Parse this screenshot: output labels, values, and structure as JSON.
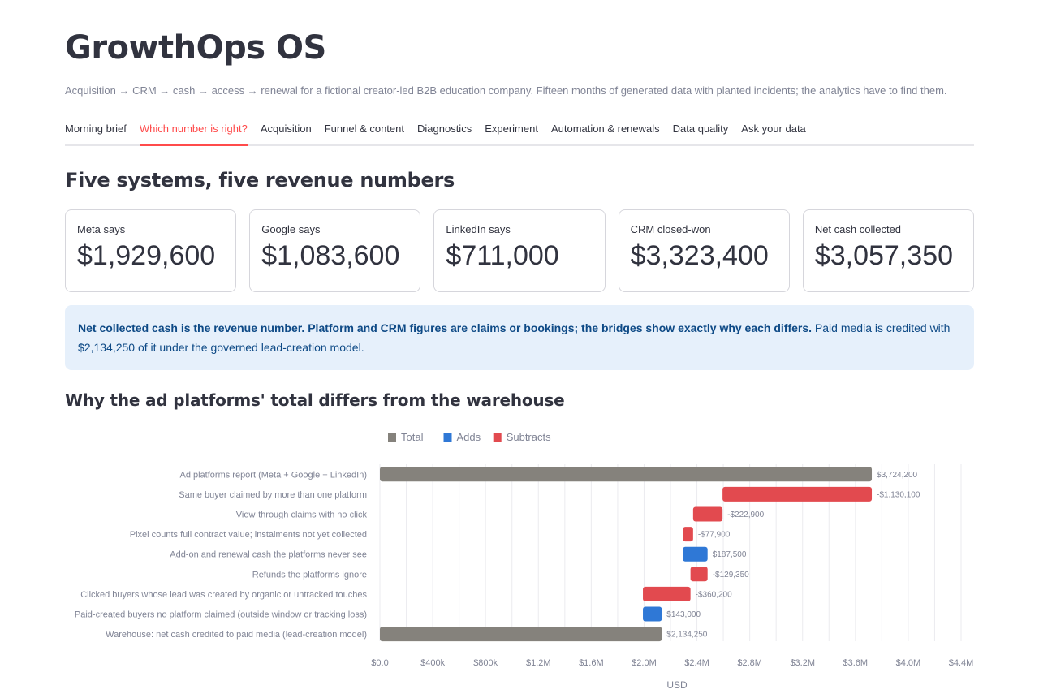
{
  "app": {
    "title": "GrowthOps OS",
    "subtitle": "Acquisition → CRM → cash → access → renewal for a fictional creator-led B2B education company. Fifteen months of generated data with planted incidents; the analytics have to find them."
  },
  "tabs": [
    {
      "label": "Morning brief",
      "active": false
    },
    {
      "label": "Which number is right?",
      "active": true
    },
    {
      "label": "Acquisition",
      "active": false
    },
    {
      "label": "Funnel & content",
      "active": false
    },
    {
      "label": "Diagnostics",
      "active": false
    },
    {
      "label": "Experiment",
      "active": false
    },
    {
      "label": "Automation & renewals",
      "active": false
    },
    {
      "label": "Data quality",
      "active": false
    },
    {
      "label": "Ask your data",
      "active": false
    }
  ],
  "section1": {
    "title": "Five systems, five revenue numbers"
  },
  "metrics": [
    {
      "label": "Meta says",
      "value": "$1,929,600"
    },
    {
      "label": "Google says",
      "value": "$1,083,600"
    },
    {
      "label": "LinkedIn says",
      "value": "$711,000"
    },
    {
      "label": "CRM closed-won",
      "value": "$3,323,400"
    },
    {
      "label": "Net cash collected",
      "value": "$3,057,350"
    }
  ],
  "info": {
    "bold": "Net collected cash is the revenue number. Platform and CRM figures are claims or bookings; the bridges show exactly why each differs.",
    "rest": " Paid media is credited with $2,134,250 of it under the governed lead-creation model."
  },
  "section2": {
    "title": "Why the ad platforms' total differs from the warehouse"
  },
  "colors": {
    "total": "#85827c",
    "adds": "#2f78d6",
    "subtracts": "#e24a4f",
    "accent": "#ff4b4b"
  },
  "chart_data": {
    "type": "bar",
    "orientation": "horizontal-waterfall",
    "legend": [
      {
        "name": "Total",
        "color": "#85827c"
      },
      {
        "name": "Adds",
        "color": "#2f78d6"
      },
      {
        "name": "Subtracts",
        "color": "#e24a4f"
      }
    ],
    "legend_position": "top-center",
    "xlabel": "USD",
    "ylabel": "",
    "xlim": [
      0,
      4400000
    ],
    "x_ticks": [
      {
        "v": 0,
        "label": "$0.0"
      },
      {
        "v": 400000,
        "label": "$400k"
      },
      {
        "v": 800000,
        "label": "$800k"
      },
      {
        "v": 1200000,
        "label": "$1.2M"
      },
      {
        "v": 1600000,
        "label": "$1.6M"
      },
      {
        "v": 2000000,
        "label": "$2.0M"
      },
      {
        "v": 2400000,
        "label": "$2.4M"
      },
      {
        "v": 2800000,
        "label": "$2.8M"
      },
      {
        "v": 3200000,
        "label": "$3.2M"
      },
      {
        "v": 3600000,
        "label": "$3.6M"
      },
      {
        "v": 4000000,
        "label": "$4.0M"
      },
      {
        "v": 4400000,
        "label": "$4.4M"
      }
    ],
    "grid": true,
    "steps": [
      {
        "label": "Ad platforms report (Meta + Google + LinkedIn)",
        "kind": "total",
        "start": 0,
        "end": 3724200,
        "value_label": "$3,724,200"
      },
      {
        "label": "Same buyer claimed by more than one platform",
        "kind": "subtract",
        "start": 3724200,
        "end": 2594100,
        "value_label": "-$1,130,100"
      },
      {
        "label": "View-through claims with no click",
        "kind": "subtract",
        "start": 2594100,
        "end": 2371200,
        "value_label": "-$222,900"
      },
      {
        "label": "Pixel counts full contract value; instalments not yet collected",
        "kind": "subtract",
        "start": 2371200,
        "end": 2293300,
        "value_label": "-$77,900"
      },
      {
        "label": "Add-on and renewal cash the platforms never see",
        "kind": "add",
        "start": 2293300,
        "end": 2480800,
        "value_label": "$187,500"
      },
      {
        "label": "Refunds the platforms ignore",
        "kind": "subtract",
        "start": 2480800,
        "end": 2351450,
        "value_label": "-$129,350"
      },
      {
        "label": "Clicked buyers whose lead was created by organic or untracked touches",
        "kind": "subtract",
        "start": 2351450,
        "end": 1991250,
        "value_label": "-$360,200"
      },
      {
        "label": "Paid-created buyers no platform claimed (outside window or tracking loss)",
        "kind": "add",
        "start": 1991250,
        "end": 2134250,
        "value_label": "$143,000"
      },
      {
        "label": "Warehouse: net cash credited to paid media (lead-creation model)",
        "kind": "total",
        "start": 0,
        "end": 2134250,
        "value_label": "$2,134,250"
      }
    ]
  }
}
